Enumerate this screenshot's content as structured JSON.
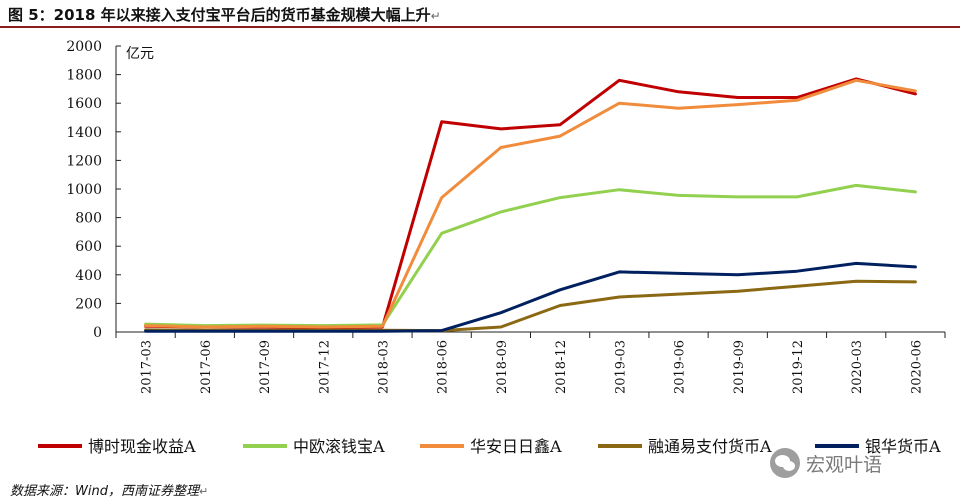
{
  "title": {
    "text": "图 5：2018 年以来接入支付宝平台后的货币基金规模大幅上升",
    "end_mark": "↵"
  },
  "source": {
    "text": "数据来源：Wind，西南证券整理",
    "end_mark": "↵"
  },
  "watermark": {
    "text": "宏观叶语",
    "icon": "wechat-icon"
  },
  "chart_data": {
    "type": "line",
    "title": "",
    "xlabel": "",
    "ylabel": "亿元",
    "ylim": [
      0,
      2000
    ],
    "yticks": [
      0,
      200,
      400,
      600,
      800,
      1000,
      1200,
      1400,
      1600,
      1800,
      2000
    ],
    "grid": false,
    "legend_position": "bottom",
    "categories": [
      "2017-03",
      "2017-06",
      "2017-09",
      "2017-12",
      "2018-03",
      "2018-06",
      "2018-09",
      "2018-12",
      "2019-03",
      "2019-06",
      "2019-09",
      "2019-12",
      "2020-03",
      "2020-06"
    ],
    "series": [
      {
        "name": "博时现金收益A",
        "color": "#c00000",
        "values": [
          40,
          35,
          35,
          30,
          35,
          1470,
          1420,
          1450,
          1760,
          1680,
          1640,
          1640,
          1770,
          1665
        ]
      },
      {
        "name": "中欧滚钱宝A",
        "color": "#92d050",
        "values": [
          55,
          45,
          48,
          45,
          50,
          690,
          840,
          940,
          995,
          955,
          945,
          945,
          1025,
          980
        ]
      },
      {
        "name": "华安日日鑫A",
        "color": "#f08c3c",
        "values": [
          45,
          35,
          40,
          35,
          40,
          940,
          1290,
          1370,
          1600,
          1565,
          1590,
          1620,
          1760,
          1685
        ]
      },
      {
        "name": "融通易支付货币A",
        "color": "#8b6914",
        "values": [
          15,
          12,
          12,
          12,
          12,
          10,
          35,
          185,
          245,
          265,
          285,
          320,
          355,
          350
        ]
      },
      {
        "name": "银华货币A",
        "color": "#002060",
        "values": [
          5,
          5,
          5,
          5,
          5,
          10,
          135,
          295,
          420,
          410,
          400,
          425,
          480,
          455
        ]
      }
    ]
  }
}
